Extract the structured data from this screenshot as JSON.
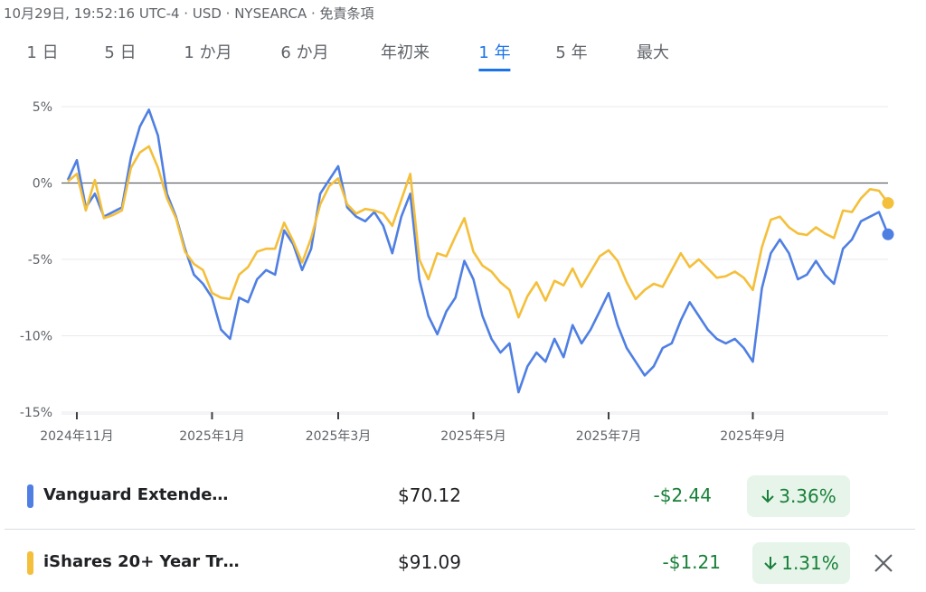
{
  "header": {
    "status": "10月29日, 19:52:16 UTC-4 · USD · NYSEARCA · 免責条項"
  },
  "tabs": [
    {
      "label": "1 日",
      "active": false
    },
    {
      "label": "5 日",
      "active": false
    },
    {
      "label": "1 か月",
      "active": false
    },
    {
      "label": "6 か月",
      "active": false
    },
    {
      "label": "年初来",
      "active": false
    },
    {
      "label": "1 年",
      "active": true
    },
    {
      "label": "5 年",
      "active": false
    },
    {
      "label": "最大",
      "active": false
    }
  ],
  "chart_data": {
    "type": "line",
    "grid": true,
    "categories": [
      null,
      "2024年11月",
      null,
      null,
      null,
      null,
      null,
      null,
      null,
      null,
      null,
      null,
      null,
      null,
      null,
      null,
      "2025年1月",
      null,
      null,
      null,
      null,
      null,
      null,
      null,
      null,
      null,
      null,
      null,
      null,
      null,
      "2025年3月",
      null,
      null,
      null,
      null,
      null,
      null,
      null,
      null,
      null,
      null,
      null,
      null,
      null,
      null,
      "2025年5月",
      null,
      null,
      null,
      null,
      null,
      null,
      null,
      null,
      null,
      null,
      null,
      null,
      null,
      null,
      "2025年7月",
      null,
      null,
      null,
      null,
      null,
      null,
      null,
      null,
      null,
      null,
      null,
      null,
      null,
      null,
      null,
      "2025年9月",
      null,
      null,
      null,
      null,
      null,
      null,
      null,
      null,
      null,
      null,
      null,
      null,
      null,
      null,
      null
    ],
    "ylim": [
      -15,
      5
    ],
    "yticks": [
      {
        "value": 5,
        "label": "5%"
      },
      {
        "value": 0,
        "label": "0%"
      },
      {
        "value": -5,
        "label": "-5%"
      },
      {
        "value": -10,
        "label": "-10%"
      },
      {
        "value": -15,
        "label": "-15%"
      }
    ],
    "series": [
      {
        "name": "Vanguard Extende…",
        "color": "#4f7fe3",
        "values": [
          0.2,
          1.5,
          -1.6,
          -0.7,
          -2.2,
          -1.9,
          -1.6,
          1.7,
          3.7,
          4.8,
          3.1,
          -0.7,
          -2.2,
          -4.3,
          -6.0,
          -6.6,
          -7.5,
          -9.6,
          -10.2,
          -7.5,
          -7.8,
          -6.3,
          -5.7,
          -6.0,
          -3.1,
          -4.0,
          -5.7,
          -4.3,
          -0.7,
          0.2,
          1.1,
          -1.6,
          -2.2,
          -2.5,
          -1.9,
          -2.8,
          -4.6,
          -2.2,
          -0.7,
          -6.3,
          -8.7,
          -9.9,
          -8.4,
          -7.5,
          -5.1,
          -6.3,
          -8.7,
          -10.2,
          -11.1,
          -10.5,
          -13.7,
          -12.0,
          -11.1,
          -11.7,
          -10.2,
          -11.4,
          -9.3,
          -10.5,
          -9.6,
          -8.4,
          -7.2,
          -9.3,
          -10.8,
          -11.7,
          -12.6,
          -12.0,
          -10.8,
          -10.5,
          -9.0,
          -7.8,
          -8.7,
          -9.6,
          -10.2,
          -10.5,
          -10.2,
          -10.8,
          -11.7,
          -6.9,
          -4.6,
          -3.7,
          -4.6,
          -6.3,
          -6.0,
          -5.1,
          -6.0,
          -6.6,
          -4.3,
          -3.7,
          -2.5,
          -2.2,
          -1.9,
          -3.36
        ]
      },
      {
        "name": "iShares 20+ Year Tr…",
        "color": "#f4bf3a",
        "values": [
          0.1,
          0.6,
          -1.8,
          0.2,
          -2.3,
          -2.1,
          -1.8,
          1.0,
          2.0,
          2.4,
          1.0,
          -1.0,
          -2.3,
          -4.5,
          -5.3,
          -5.7,
          -7.2,
          -7.5,
          -7.6,
          -6.0,
          -5.5,
          -4.5,
          -4.3,
          -4.3,
          -2.6,
          -3.8,
          -5.2,
          -3.6,
          -1.4,
          -0.2,
          0.3,
          -1.4,
          -2.0,
          -1.7,
          -1.8,
          -2.0,
          -2.8,
          -1.1,
          0.6,
          -5.0,
          -6.3,
          -4.6,
          -4.8,
          -3.5,
          -2.3,
          -4.5,
          -5.4,
          -5.8,
          -6.5,
          -7.0,
          -8.8,
          -7.4,
          -6.5,
          -7.7,
          -6.4,
          -6.7,
          -5.6,
          -6.8,
          -5.8,
          -4.8,
          -4.4,
          -5.1,
          -6.5,
          -7.6,
          -7.0,
          -6.6,
          -6.8,
          -5.7,
          -4.6,
          -5.5,
          -5.0,
          -5.6,
          -6.2,
          -6.1,
          -5.8,
          -6.2,
          -7.0,
          -4.2,
          -2.4,
          -2.2,
          -2.9,
          -3.3,
          -3.4,
          -2.9,
          -3.3,
          -3.6,
          -1.8,
          -1.9,
          -1.0,
          -0.4,
          -0.5,
          -1.31
        ]
      }
    ]
  },
  "holdings": [
    {
      "price": "$70.12",
      "change": "-$2.44",
      "change_percent": "3.36%"
    },
    {
      "price": "$91.09",
      "change": "-$1.21",
      "change_percent": "1.31%"
    }
  ]
}
